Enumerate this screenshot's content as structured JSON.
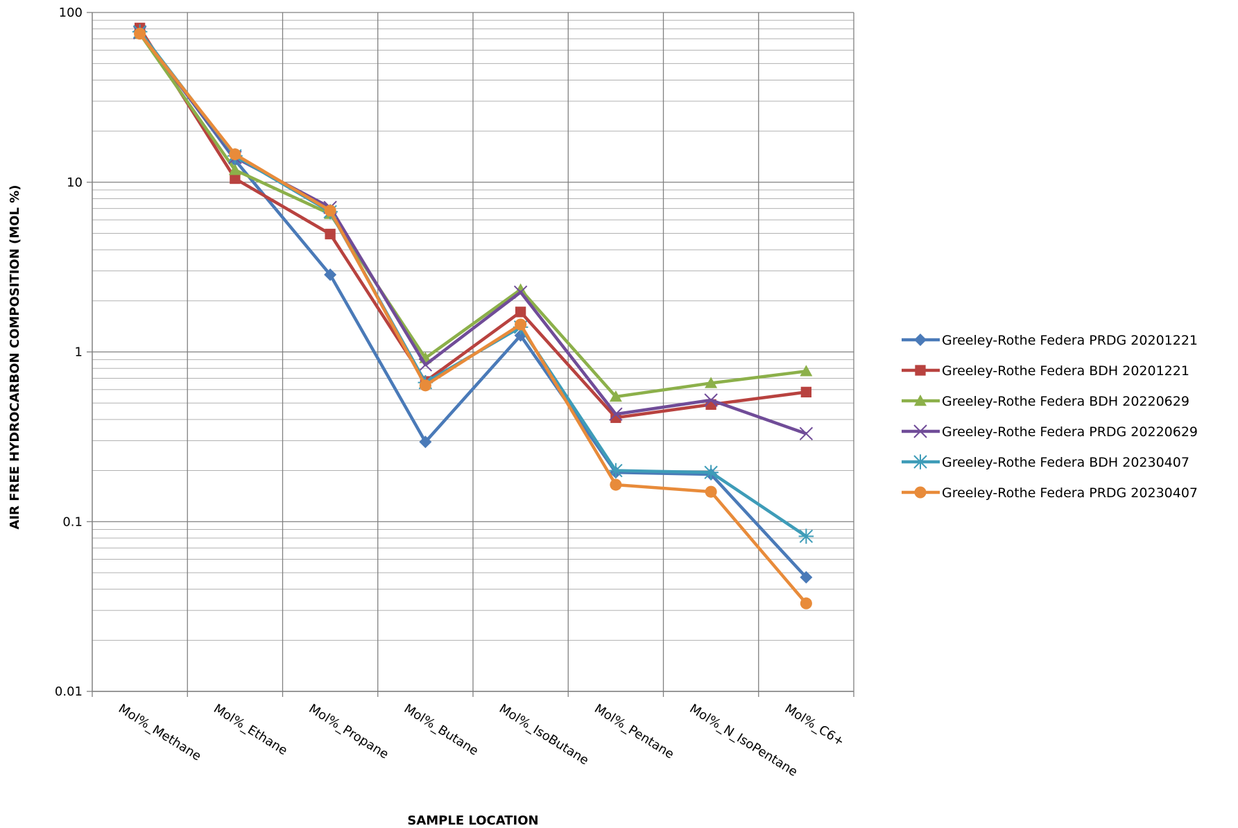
{
  "chart_data": {
    "type": "line",
    "title": "",
    "xlabel": "SAMPLE LOCATION",
    "ylabel": "AIR FREE HYDROCARBON COMPOSITION (MOL %)",
    "yscale": "log",
    "ylim": [
      0.01,
      100
    ],
    "y_ticks": [
      "100",
      "10",
      "1",
      "0.1",
      "0.01"
    ],
    "grid": true,
    "legend_position": "right",
    "categories": [
      "Mol%_Methane",
      "Mol%_Ethane",
      "Mol%_Propane",
      "Mol%_Butane",
      "Mol%_IsoButane",
      "Mol%_Pentane",
      "Mol%_N_IsoPentane",
      "Mol%_C6+"
    ],
    "series": [
      {
        "name": "Greeley-Rothe Federa PRDG 20201221",
        "color": "#4a7ab8",
        "marker": "diamond",
        "values": [
          78,
          13.5,
          2.85,
          0.295,
          1.25,
          0.195,
          0.19,
          0.047
        ]
      },
      {
        "name": "Greeley-Rothe Federa BDH 20201221",
        "color": "#b8423f",
        "marker": "square",
        "values": [
          81,
          10.5,
          4.95,
          0.67,
          1.72,
          0.41,
          0.49,
          0.58
        ]
      },
      {
        "name": "Greeley-Rothe Federa BDH 20220629",
        "color": "#8cb04a",
        "marker": "triangle",
        "values": [
          75,
          11.8,
          6.5,
          0.92,
          2.33,
          0.545,
          0.655,
          0.77
        ]
      },
      {
        "name": "Greeley-Rothe Federa PRDG 20220629",
        "color": "#704c98",
        "marker": "x",
        "values": [
          76,
          14.0,
          7.1,
          0.84,
          2.25,
          0.43,
          0.52,
          0.33
        ]
      },
      {
        "name": "Greeley-Rothe Federa BDH 20230407",
        "color": "#3e9cb8",
        "marker": "star",
        "values": [
          77,
          14.3,
          6.7,
          0.66,
          1.4,
          0.2,
          0.195,
          0.082
        ]
      },
      {
        "name": "Greeley-Rothe Federa PRDG 20230407",
        "color": "#e88b3a",
        "marker": "circle",
        "values": [
          75,
          14.6,
          6.8,
          0.635,
          1.45,
          0.165,
          0.15,
          0.033
        ]
      }
    ]
  }
}
